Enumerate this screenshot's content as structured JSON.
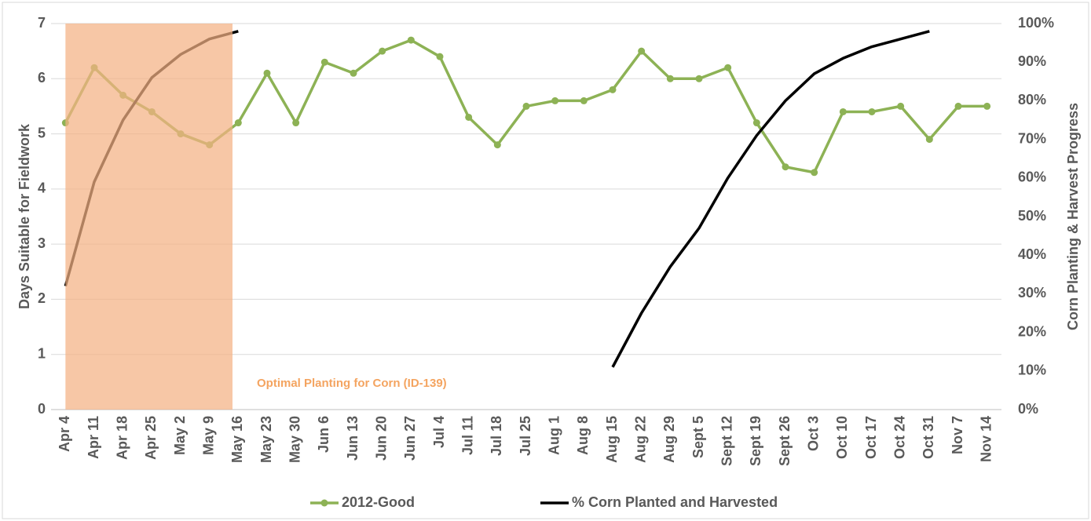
{
  "chart_data": {
    "type": "line",
    "categories": [
      "Apr 4",
      "Apr 11",
      "Apr 18",
      "Apr 25",
      "May 2",
      "May 9",
      "May 16",
      "May 23",
      "May 30",
      "Jun 6",
      "Jun 13",
      "Jun 20",
      "Jun 27",
      "Jul 4",
      "Jul 11",
      "Jul 18",
      "Jul 25",
      "Aug 1",
      "Aug 8",
      "Aug 15",
      "Aug 22",
      "Aug 29",
      "Sept 5",
      "Sept 12",
      "Sept 19",
      "Sept 26",
      "Oct 3",
      "Oct 10",
      "Oct 17",
      "Oct 24",
      "Oct 31",
      "Nov 7",
      "Nov 14"
    ],
    "series": [
      {
        "name": "2012-Good",
        "color": "#8db255",
        "marker": true,
        "values": [
          5.2,
          6.2,
          5.7,
          5.4,
          5.0,
          4.8,
          5.2,
          6.1,
          5.2,
          6.3,
          6.1,
          6.5,
          6.7,
          6.4,
          5.3,
          4.8,
          5.5,
          5.6,
          5.6,
          5.8,
          6.5,
          6.0,
          6.0,
          6.2,
          5.2,
          4.4,
          4.3,
          5.4,
          5.4,
          5.5,
          4.9,
          5.5,
          5.5
        ]
      },
      {
        "name": "% Corn Planted and Harvested",
        "color": "#000000",
        "marker": false,
        "axis": "y2",
        "values": [
          32,
          59,
          75,
          86,
          92,
          96,
          98,
          null,
          null,
          null,
          null,
          null,
          null,
          null,
          null,
          null,
          null,
          null,
          null,
          11,
          25,
          37,
          47,
          60,
          71,
          80,
          87,
          91,
          94,
          96,
          98,
          null,
          null
        ]
      }
    ],
    "ylabel": "Days Suitable for Fieldwork",
    "y2label": "Corn Planting & Harvest Progress",
    "annotation": "Optimal Planting for Corn (ID-139)",
    "ylim": [
      0,
      7
    ],
    "yticks": [
      0,
      1,
      2,
      3,
      4,
      5,
      6,
      7
    ],
    "y2lim": [
      0,
      100
    ],
    "y2ticks": [
      {
        "value": 0,
        "label": "0%"
      },
      {
        "value": 10,
        "label": "10%"
      },
      {
        "value": 20,
        "label": "20%"
      },
      {
        "value": 30,
        "label": "30%"
      },
      {
        "value": 40,
        "label": "40%"
      },
      {
        "value": 50,
        "label": "50%"
      },
      {
        "value": 60,
        "label": "60%"
      },
      {
        "value": 70,
        "label": "70%"
      },
      {
        "value": 80,
        "label": "80%"
      },
      {
        "value": 90,
        "label": "90%"
      },
      {
        "value": 100,
        "label": "100%"
      }
    ],
    "grid": true,
    "legend": "bottom"
  }
}
